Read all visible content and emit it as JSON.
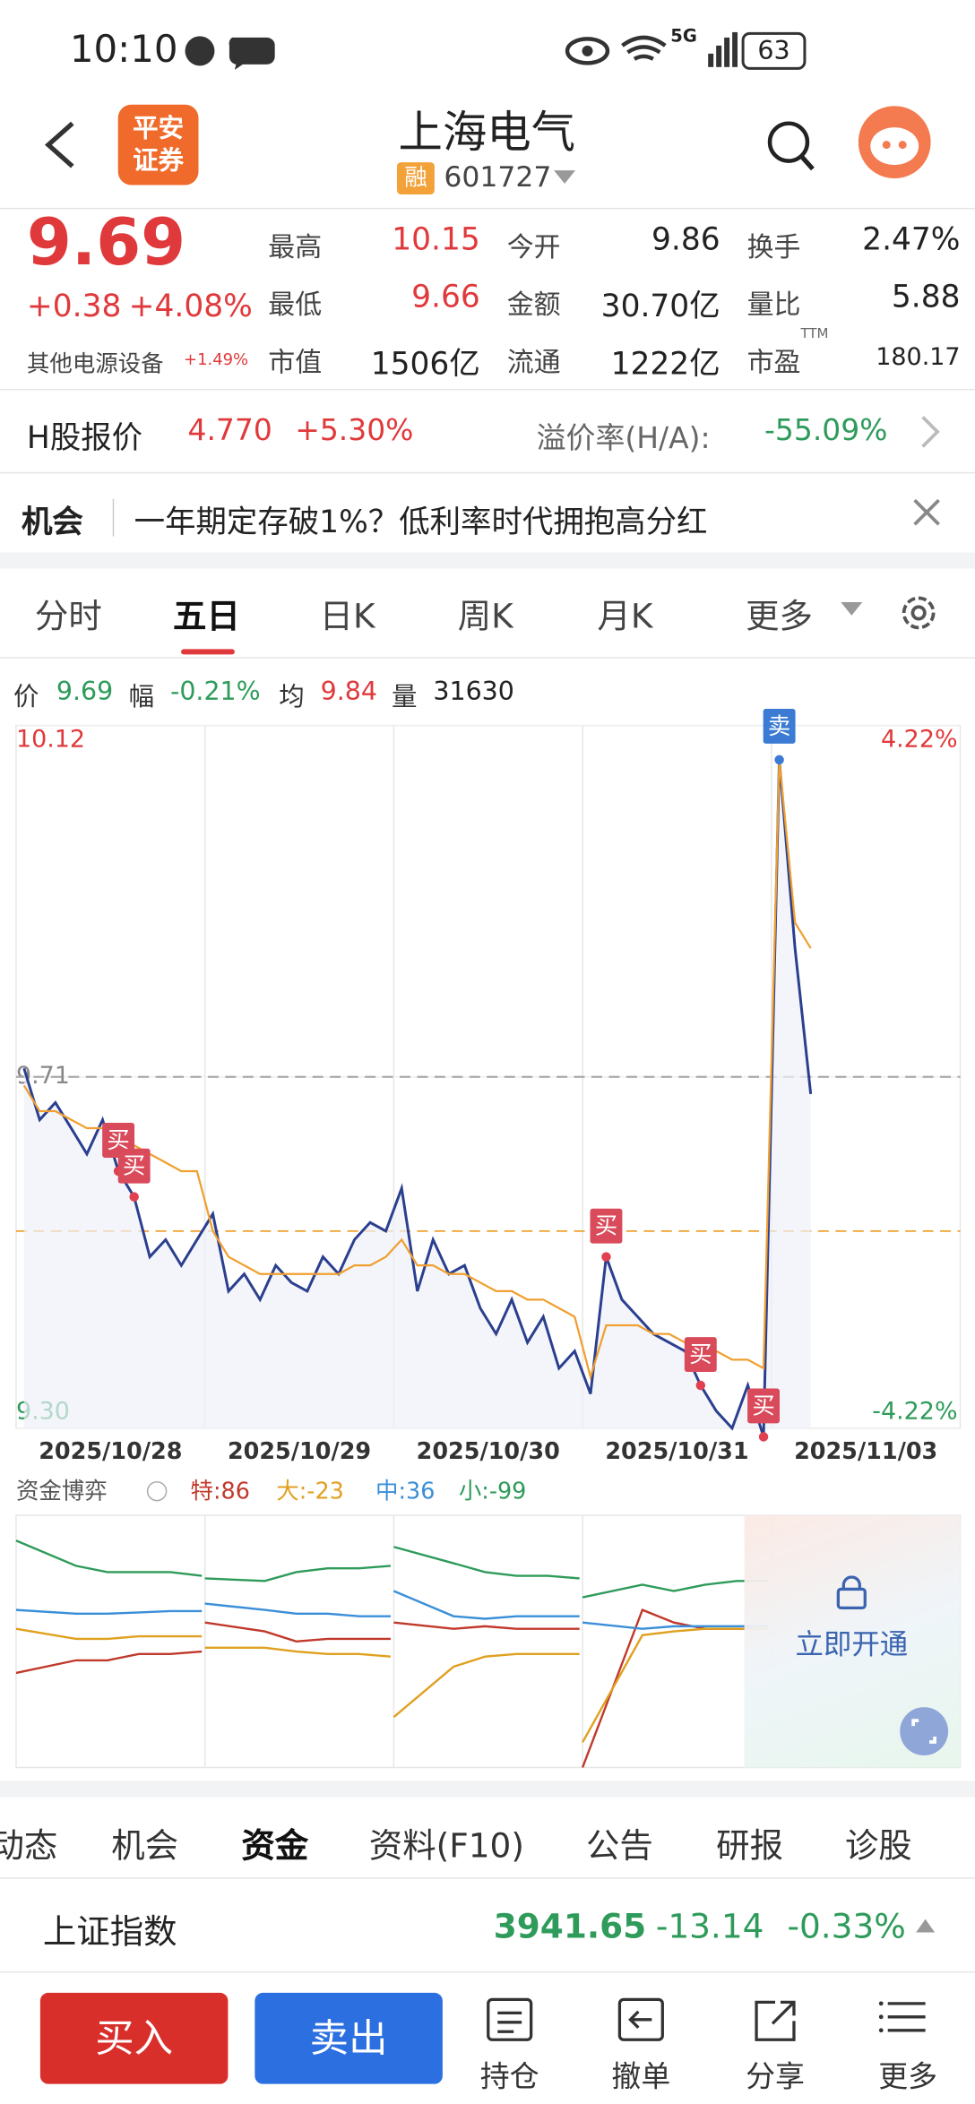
{
  "status_bar": {
    "time": "10:10",
    "network": "5G",
    "battery": "63"
  },
  "header": {
    "logo": [
      "平安",
      "证券"
    ],
    "title": "上海电气",
    "margin_badge": "融",
    "code": "601727"
  },
  "quote": {
    "price": "9.69",
    "change": "+0.38",
    "change_pct": "+4.08%",
    "sector": "其他电源设备",
    "sector_pct": "+1.49%",
    "stats": [
      [
        {
          "label": "最高",
          "value": "10.15"
        },
        {
          "label": "今开",
          "value": "9.86"
        },
        {
          "label": "换手",
          "value": "2.47%"
        }
      ],
      [
        {
          "label": "最低",
          "value": "9.66"
        },
        {
          "label": "金额",
          "value": "30.70亿"
        },
        {
          "label": "量比",
          "value": "5.88"
        }
      ],
      [
        {
          "label": "市值",
          "value": "1506亿"
        },
        {
          "label": "流通",
          "value": "1222亿"
        },
        {
          "label": "市盈",
          "sup": "TTM",
          "value": "180.17"
        }
      ]
    ]
  },
  "h_share": {
    "label": "H股报价",
    "price": "4.770",
    "change_pct": "+5.30%",
    "premium_label": "溢价率(H/A):",
    "premium": "-55.09%"
  },
  "news": {
    "tag": "机会",
    "text": "一年期定存破1%？低利率时代拥抱高分红"
  },
  "tabs": [
    "分时",
    "五日",
    "日K",
    "周K",
    "月K",
    "更多"
  ],
  "info_bar": [
    {
      "label": "价",
      "value": "9.69"
    },
    {
      "label": "幅",
      "value": "-0.21%"
    },
    {
      "label": "均",
      "value": "9.84"
    },
    {
      "label": "量",
      "value": "31630"
    }
  ],
  "chart_data": [
    {
      "type": "line",
      "x_labels": [
        "2025/10/28",
        "2025/10/29",
        "2025/10/30",
        "2025/10/31",
        "2025/11/03"
      ],
      "ylim": [
        9.3,
        10.12
      ],
      "yticks": [
        {
          "value": 9.3,
          "label": "9.30"
        },
        9.71,
        10.12
      ],
      "y2lim": [
        -4.22,
        4.22
      ],
      "y2ticks": [
        {
          "value": -4.22,
          "label": "-4.22%"
        },
        {
          "value": 4.22,
          "label": "4.22%"
        }
      ],
      "prev_close": 9.71,
      "avg_ref": 9.53,
      "series": [
        {
          "name": "价",
          "color": "#2b3f8f",
          "values": [
            9.72,
            9.66,
            9.68,
            9.65,
            9.62,
            9.66,
            9.6,
            9.57,
            9.5,
            9.52,
            9.49,
            9.52,
            9.55,
            9.46,
            9.48,
            9.45,
            9.49,
            9.47,
            9.46,
            9.5,
            9.48,
            9.52,
            9.54,
            9.53,
            9.58,
            9.46,
            9.52,
            9.48,
            9.49,
            9.44,
            9.41,
            9.45,
            9.4,
            9.43,
            9.37,
            9.39,
            9.34,
            9.5,
            9.45,
            9.43,
            9.41,
            9.4,
            9.39,
            9.35,
            9.32,
            9.3,
            9.35,
            9.29,
            10.08,
            9.86,
            9.69,
            null,
            null,
            null,
            null,
            null,
            null,
            null,
            null,
            null
          ]
        },
        {
          "name": "均",
          "color": "#f0a030",
          "values": [
            9.7,
            9.67,
            9.67,
            9.66,
            9.65,
            9.65,
            9.64,
            9.63,
            9.62,
            9.61,
            9.6,
            9.6,
            9.53,
            9.5,
            9.49,
            9.48,
            9.48,
            9.48,
            9.48,
            9.48,
            9.48,
            9.49,
            9.49,
            9.5,
            9.52,
            9.49,
            9.49,
            9.48,
            9.48,
            9.47,
            9.46,
            9.46,
            9.45,
            9.45,
            9.44,
            9.43,
            9.36,
            9.42,
            9.42,
            9.42,
            9.41,
            9.41,
            9.4,
            9.4,
            9.39,
            9.38,
            9.38,
            9.37,
            10.08,
            9.89,
            9.86,
            null,
            null,
            null,
            null,
            null,
            null,
            null,
            null,
            null
          ]
        }
      ],
      "annotations": [
        {
          "text": "买",
          "x": 6
        },
        {
          "text": "买",
          "x": 7
        },
        {
          "text": "买",
          "x": 37
        },
        {
          "text": "买",
          "x": 43
        },
        {
          "text": "买",
          "x": 47
        },
        {
          "text": "卖",
          "x": 48
        }
      ]
    },
    {
      "type": "line",
      "title": "资金博弈",
      "ylim": [
        -100,
        100
      ],
      "series": [
        {
          "name": "特:86",
          "color": "#c0392b",
          "values": [
            -25,
            -15,
            -15,
            -10,
            -10,
            -8,
            15,
            8,
            0,
            2,
            2,
            2,
            15,
            10,
            12,
            10,
            10,
            10,
            -100,
            25,
            15,
            10,
            10,
            10
          ]
        },
        {
          "name": "大:-23",
          "color": "#e0a020",
          "values": [
            10,
            2,
            2,
            4,
            4,
            4,
            -5,
            -5,
            -8,
            -10,
            -10,
            -12,
            -60,
            -20,
            -12,
            -10,
            -10,
            -10,
            -80,
            5,
            8,
            10,
            10,
            10
          ]
        },
        {
          "name": "中:36",
          "color": "#3a8fd8",
          "values": [
            25,
            22,
            22,
            23,
            24,
            24,
            30,
            25,
            22,
            22,
            20,
            20,
            40,
            20,
            18,
            20,
            20,
            20,
            15,
            10,
            12,
            12,
            12,
            12
          ]
        },
        {
          "name": "小:-99",
          "color": "#2e9b5a",
          "values": [
            80,
            60,
            55,
            55,
            55,
            52,
            50,
            48,
            55,
            58,
            58,
            60,
            75,
            62,
            55,
            52,
            52,
            50,
            35,
            45,
            40,
            45,
            48,
            48
          ]
        }
      ],
      "lock_text": "立即开通"
    }
  ],
  "sub_tabs": [
    "动态",
    "机会",
    "资金",
    "资料(F10)",
    "公告",
    "研报",
    "诊股"
  ],
  "index_bar": {
    "name": "上证指数",
    "value": "3941.65",
    "change": "-13.14",
    "change_pct": "-0.33%"
  },
  "bottom_bar": {
    "buy": "买入",
    "sell": "卖出",
    "items": [
      "持仓",
      "撤单",
      "分享",
      "更多"
    ]
  }
}
